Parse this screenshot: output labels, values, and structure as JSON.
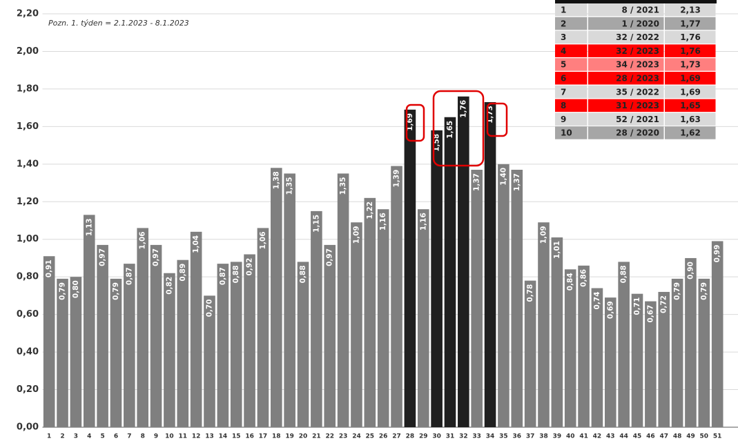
{
  "chart_data": {
    "type": "bar",
    "annotation": "Pozn. 1. týden = 2.1.2023 - 8.1.2023",
    "categories": [
      "1",
      "2",
      "3",
      "4",
      "5",
      "6",
      "7",
      "8",
      "9",
      "10",
      "11",
      "12",
      "13",
      "14",
      "15",
      "16",
      "17",
      "18",
      "19",
      "20",
      "21",
      "22",
      "23",
      "24",
      "25",
      "26",
      "27",
      "28",
      "29",
      "30",
      "31",
      "32",
      "33",
      "34",
      "35",
      "36",
      "37",
      "38",
      "39",
      "40",
      "41",
      "42",
      "43",
      "44",
      "45",
      "46",
      "47",
      "48",
      "49",
      "50",
      "51"
    ],
    "values": [
      0.91,
      0.79,
      0.8,
      1.13,
      0.97,
      0.79,
      0.87,
      1.06,
      0.97,
      0.82,
      0.89,
      1.04,
      0.7,
      0.87,
      0.88,
      0.92,
      1.06,
      1.38,
      1.35,
      0.88,
      1.15,
      0.97,
      1.35,
      1.09,
      1.22,
      1.16,
      1.39,
      1.69,
      1.16,
      1.58,
      1.65,
      1.76,
      1.37,
      1.73,
      1.4,
      1.37,
      0.78,
      1.09,
      1.01,
      0.84,
      0.86,
      0.74,
      0.69,
      0.88,
      0.71,
      0.67,
      0.72,
      0.79,
      0.9,
      0.79,
      0.99
    ],
    "value_labels": [
      "0,91",
      "0,79",
      "0,80",
      "1,13",
      "0,97",
      "0,79",
      "0,87",
      "1,06",
      "0,97",
      "0,82",
      "0,89",
      "1,04",
      "0,70",
      "0,87",
      "0,88",
      "0,92",
      "1,06",
      "1,38",
      "1,35",
      "0,88",
      "1,15",
      "0,97",
      "1,35",
      "1,09",
      "1,22",
      "1,16",
      "1,39",
      "1,69",
      "1,16",
      "1,58",
      "1,65",
      "1,76",
      "1,37",
      "1,73",
      "1,40",
      "1,37",
      "0,78",
      "1,09",
      "1,01",
      "0,84",
      "0,86",
      "0,74",
      "0,69",
      "0,88",
      "0,71",
      "0,67",
      "0,72",
      "0,79",
      "0,90",
      "0,79",
      "0,99"
    ],
    "colors": [
      "#7f7f7f",
      "#7f7f7f",
      "#7f7f7f",
      "#7f7f7f",
      "#7f7f7f",
      "#7f7f7f",
      "#7f7f7f",
      "#7f7f7f",
      "#7f7f7f",
      "#7f7f7f",
      "#7f7f7f",
      "#7f7f7f",
      "#7f7f7f",
      "#7f7f7f",
      "#7f7f7f",
      "#7f7f7f",
      "#7f7f7f",
      "#7f7f7f",
      "#7f7f7f",
      "#7f7f7f",
      "#7f7f7f",
      "#7f7f7f",
      "#7f7f7f",
      "#7f7f7f",
      "#7f7f7f",
      "#7f7f7f",
      "#7f7f7f",
      "#1f1f1f",
      "#7f7f7f",
      "#1f1f1f",
      "#1f1f1f",
      "#1f1f1f",
      "#7f7f7f",
      "#1f1f1f",
      "#7f7f7f",
      "#7f7f7f",
      "#7f7f7f",
      "#7f7f7f",
      "#7f7f7f",
      "#7f7f7f",
      "#7f7f7f",
      "#7f7f7f",
      "#7f7f7f",
      "#7f7f7f",
      "#7f7f7f",
      "#7f7f7f",
      "#7f7f7f",
      "#7f7f7f",
      "#7f7f7f",
      "#7f7f7f",
      "#7f7f7f"
    ],
    "ylim": [
      0,
      2.2
    ],
    "yticks": [
      {
        "value": 0,
        "label": "0,00"
      },
      {
        "value": 0.2,
        "label": "0,20"
      },
      {
        "value": 0.4,
        "label": "0,40"
      },
      {
        "value": 0.6,
        "label": "0,60"
      },
      {
        "value": 0.8,
        "label": "0,80"
      },
      {
        "value": 1.0,
        "label": "1,00"
      },
      {
        "value": 1.2,
        "label": "1,20"
      },
      {
        "value": 1.4,
        "label": "1,40"
      },
      {
        "value": 1.6,
        "label": "1,60"
      },
      {
        "value": 1.8,
        "label": "1,80"
      },
      {
        "value": 2.0,
        "label": "2,00"
      },
      {
        "value": 2.2,
        "label": "2,20"
      }
    ],
    "grid": true
  },
  "table": {
    "rows": [
      [
        "1",
        "8 / 2021",
        "2,13"
      ],
      [
        "2",
        "1 / 2020",
        "1,77"
      ],
      [
        "3",
        "32 / 2022",
        "1,76"
      ],
      [
        "4",
        "32 / 2023",
        "1,76"
      ],
      [
        "5",
        "34 / 2023",
        "1,73"
      ],
      [
        "6",
        "28 / 2023",
        "1,69"
      ],
      [
        "7",
        "35 / 2022",
        "1,69"
      ],
      [
        "8",
        "31 / 2023",
        "1,65"
      ],
      [
        "9",
        "52 / 2021",
        "1,63"
      ],
      [
        "10",
        "28 / 2020",
        "1,62"
      ]
    ],
    "row_colors": [
      "#d9d9d9",
      "#a6a6a6",
      "#d9d9d9",
      "#ff0000",
      "#ff7f7f",
      "#ff0000",
      "#d9d9d9",
      "#ff0000",
      "#d9d9d9",
      "#a6a6a6"
    ]
  }
}
